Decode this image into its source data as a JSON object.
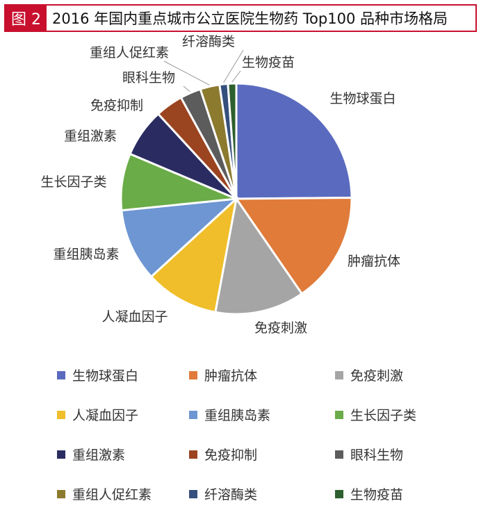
{
  "header": {
    "tag": "图 2",
    "title": "2016 年国内重点城市公立医院生物药 Top100 品种市场格局"
  },
  "chart_data": {
    "type": "pie",
    "title": "2016 年国内重点城市公立医院生物药 Top100 品种市场格局",
    "legend_position": "bottom",
    "slices": [
      {
        "label": "生物球蛋白",
        "value": 25.6,
        "color": "#5a6bbf"
      },
      {
        "label": "肿瘤抗体",
        "value": 16.0,
        "color": "#e07b39"
      },
      {
        "label": "免疫刺激",
        "value": 12.9,
        "color": "#a5a5a5"
      },
      {
        "label": "人凝血因子",
        "value": 10.6,
        "color": "#f0be2a"
      },
      {
        "label": "重组胰岛素",
        "value": 10.5,
        "color": "#6d96d2"
      },
      {
        "label": "生长因子类",
        "value": 8.2,
        "color": "#6aac47"
      },
      {
        "label": "重组激素",
        "value": 7.0,
        "color": "#2a2c61"
      },
      {
        "label": "免疫抑制",
        "value": 4.0,
        "color": "#9b4420"
      },
      {
        "label": "眼科生物",
        "value": 3.0,
        "color": "#5c5c5c"
      },
      {
        "label": "重组人促红素",
        "value": 2.8,
        "color": "#8c7a2e"
      },
      {
        "label": "纤溶酶类",
        "value": 1.2,
        "color": "#36507d"
      },
      {
        "label": "生物疫苗",
        "value": 1.2,
        "color": "#2e5f2e"
      }
    ]
  }
}
